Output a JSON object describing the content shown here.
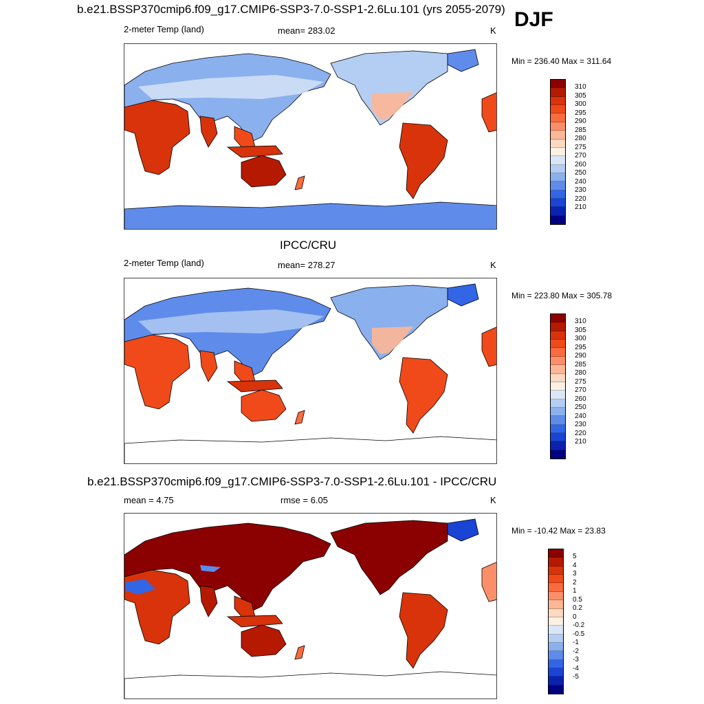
{
  "season": "DJF",
  "panels": [
    {
      "title": "b.e21.BSSP370cmip6.f09_g17.CMIP6-SSP3-7.0-SSP1-2.6Lu.101 (yrs 2055-2079)",
      "variable": "2-meter Temp (land)",
      "stat": "mean= 283.02",
      "stat2": "",
      "units": "K",
      "minmax": "Min = 236.40 Max = 311.64",
      "scheme": "model"
    },
    {
      "title": "IPCC/CRU",
      "variable": "2-meter Temp (land)",
      "stat": "mean= 278.27",
      "stat2": "",
      "units": "K",
      "minmax": "Min = 223.80 Max = 305.78",
      "scheme": "obs"
    },
    {
      "title": "b.e21.BSSP370cmip6.f09_g17.CMIP6-SSP3-7.0-SSP1-2.6Lu.101 - IPCC/CRU",
      "variable": "mean =   4.75",
      "stat": "rmse =   6.05",
      "stat2": "",
      "units": "K",
      "minmax": "Min = -10.42 Max =  23.83",
      "scheme": "diff"
    }
  ],
  "colorbars": {
    "temp": {
      "labels": [
        "310",
        "305",
        "300",
        "295",
        "290",
        "285",
        "280",
        "275",
        "270",
        "260",
        "250",
        "240",
        "230",
        "220",
        "210"
      ],
      "colors": [
        "#8b0000",
        "#b51a00",
        "#d8330a",
        "#f04a1a",
        "#fa6b3d",
        "#fc8f6a",
        "#fdb796",
        "#fdd9c2",
        "#fef1e4",
        "#d9e6f7",
        "#b4cdf2",
        "#8bb0ee",
        "#5f8ceb",
        "#3366e6",
        "#1a44d6",
        "#0a22b0",
        "#000080"
      ]
    },
    "diff": {
      "labels": [
        "5",
        "4",
        "3",
        "2",
        "1",
        "0.5",
        "0.2",
        "0",
        "-0.2",
        "-0.5",
        "-1",
        "-2",
        "-3",
        "-4",
        "-5"
      ],
      "colors": [
        "#8b0000",
        "#b51a00",
        "#d8330a",
        "#f04a1a",
        "#fa6b3d",
        "#fc8f6a",
        "#fdb796",
        "#fdd9c2",
        "#fef1e4",
        "#d9e6f7",
        "#b4cdf2",
        "#8bb0ee",
        "#5f8ceb",
        "#3366e6",
        "#1a44d6",
        "#0a22b0",
        "#000080"
      ]
    }
  }
}
